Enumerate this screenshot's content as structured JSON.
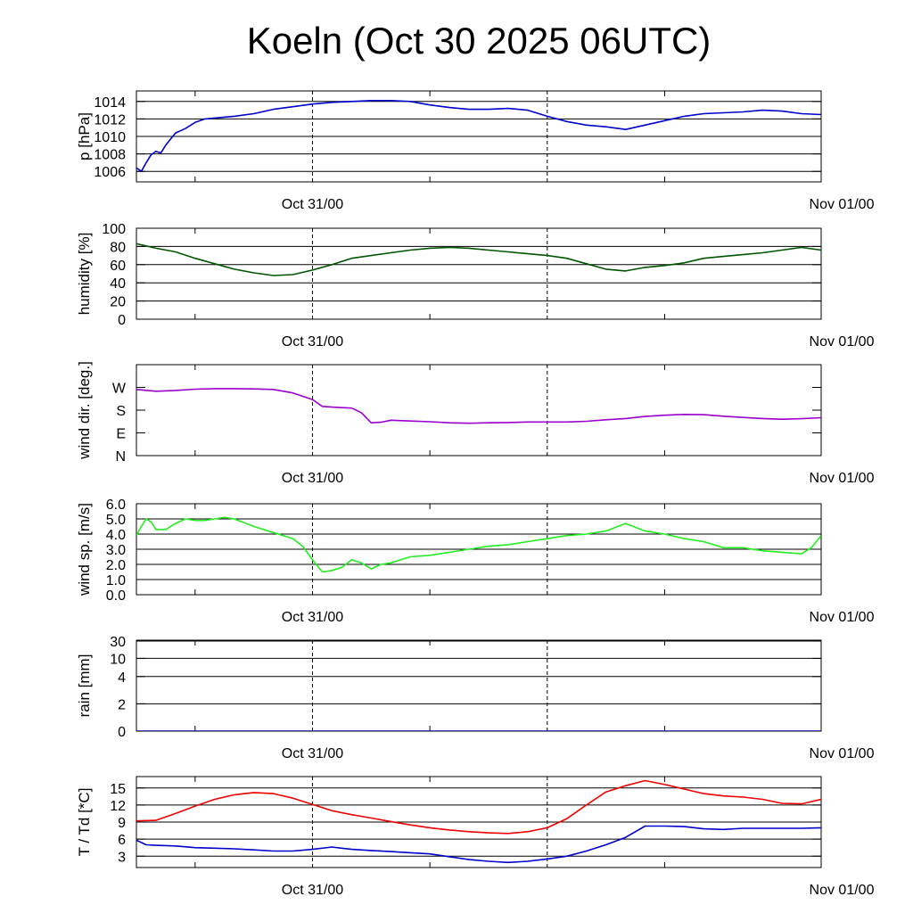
{
  "title": "Koeln (Oct 30 2025 06UTC)",
  "x_tick_labels": [
    "Oct 31/00",
    "Nov 01/00"
  ],
  "chart_data": [
    {
      "id": "pressure",
      "type": "line",
      "ylabel": "p [hPa]",
      "ylim": [
        1004.8,
        1015.2
      ],
      "yticks": [
        1006,
        1008,
        1010,
        1012,
        1014
      ],
      "ytick_labels": [
        "1006",
        "1008",
        "1010",
        "1012",
        "1014"
      ],
      "grid": true,
      "series": [
        {
          "color": "#0000cc",
          "x": [
            0,
            0.5,
            1,
            1.5,
            2,
            2.5,
            3,
            3.5,
            4,
            5,
            6,
            7,
            8,
            10,
            12,
            14,
            16,
            18,
            20,
            22,
            24,
            26,
            28,
            30,
            32,
            34,
            36,
            38,
            40,
            42,
            44,
            46,
            48,
            50,
            52,
            54,
            56,
            58,
            60,
            62,
            64,
            66,
            68,
            70
          ],
          "values": [
            1006.4,
            1006.0,
            1007.0,
            1007.9,
            1008.3,
            1008.1,
            1009.0,
            1009.7,
            1010.4,
            1010.9,
            1011.6,
            1012.0,
            1012.1,
            1012.3,
            1012.6,
            1013.1,
            1013.4,
            1013.7,
            1013.9,
            1014.0,
            1014.1,
            1014.1,
            1014.0,
            1013.6,
            1013.3,
            1013.1,
            1013.1,
            1013.2,
            1013.0,
            1012.3,
            1011.7,
            1011.3,
            1011.1,
            1010.8,
            1011.3,
            1011.8,
            1012.3,
            1012.6,
            1012.7,
            1012.8,
            1013.0,
            1012.9,
            1012.6,
            1012.5
          ]
        }
      ]
    },
    {
      "id": "humidity",
      "type": "line",
      "ylabel": "humidity [%]",
      "ylim": [
        0,
        100
      ],
      "yticks": [
        0,
        20,
        40,
        60,
        80,
        100
      ],
      "ytick_labels": [
        "0",
        "20",
        "40",
        "60",
        "80",
        "100"
      ],
      "grid": true,
      "series": [
        {
          "color": "#005500",
          "x": [
            0,
            2,
            4,
            6,
            8,
            10,
            12,
            14,
            16,
            18,
            20,
            22,
            24,
            26,
            28,
            30,
            32,
            34,
            36,
            38,
            40,
            42,
            44,
            46,
            48,
            50,
            52,
            54,
            56,
            58,
            60,
            62,
            64,
            66,
            68,
            70
          ],
          "values": [
            83,
            78,
            74,
            67,
            61,
            55,
            51,
            48,
            49,
            54,
            60,
            67,
            70,
            73,
            76,
            78,
            79,
            78,
            76,
            74,
            72,
            70,
            67,
            61,
            55,
            53,
            57,
            59,
            62,
            67,
            69,
            71,
            73,
            76,
            79,
            76
          ]
        }
      ]
    },
    {
      "id": "wind-direction",
      "type": "line",
      "ylabel": "wind dir. [deg.]",
      "ylim": [
        0,
        360
      ],
      "yticks": [
        0,
        90,
        180,
        270
      ],
      "ytick_labels": [
        "N",
        "E",
        "S",
        "W"
      ],
      "grid": false,
      "series": [
        {
          "color": "#9900cc",
          "x": [
            0,
            2,
            4,
            6,
            8,
            10,
            12,
            14,
            16,
            18,
            19,
            20,
            22,
            23,
            24,
            25,
            26,
            28,
            30,
            32,
            34,
            36,
            38,
            40,
            42,
            44,
            46,
            48,
            50,
            52,
            54,
            56,
            58,
            60,
            62,
            64,
            66,
            68,
            70
          ],
          "values": [
            262,
            255,
            258,
            263,
            265,
            265,
            264,
            262,
            248,
            222,
            195,
            192,
            188,
            170,
            130,
            132,
            140,
            137,
            134,
            130,
            128,
            130,
            131,
            133,
            133,
            133,
            136,
            142,
            147,
            155,
            160,
            163,
            162,
            156,
            151,
            147,
            144,
            146,
            150
          ]
        }
      ]
    },
    {
      "id": "wind-speed",
      "type": "line",
      "ylabel": "wind sp. [m/s]",
      "ylim": [
        0,
        6
      ],
      "yticks": [
        0,
        1,
        2,
        3,
        4,
        5,
        6
      ],
      "ytick_labels": [
        "0.0",
        "1.0",
        "2.0",
        "3.0",
        "4.0",
        "5.0",
        "6.0"
      ],
      "grid": true,
      "series": [
        {
          "color": "#22ee22",
          "x": [
            0,
            0.5,
            1,
            1.5,
            2,
            3,
            4,
            5,
            6,
            7,
            8,
            9,
            10,
            12,
            14,
            16,
            17,
            18,
            19,
            20,
            21,
            22,
            23,
            24,
            25,
            26,
            28,
            30,
            32,
            34,
            36,
            38,
            40,
            42,
            44,
            46,
            48,
            50,
            52,
            54,
            56,
            58,
            60,
            62,
            64,
            66,
            68,
            69,
            70
          ],
          "values": [
            3.9,
            4.5,
            5.0,
            4.8,
            4.3,
            4.3,
            4.7,
            5.0,
            4.9,
            4.9,
            5.0,
            5.1,
            5.0,
            4.5,
            4.1,
            3.7,
            3.2,
            2.3,
            1.5,
            1.6,
            1.8,
            2.3,
            2.1,
            1.7,
            2.0,
            2.1,
            2.5,
            2.6,
            2.8,
            3.0,
            3.2,
            3.3,
            3.5,
            3.7,
            3.9,
            4.0,
            4.2,
            4.7,
            4.2,
            4.0,
            3.7,
            3.5,
            3.1,
            3.1,
            2.9,
            2.8,
            2.7,
            3.1,
            3.9
          ]
        }
      ]
    },
    {
      "id": "rain",
      "type": "line",
      "ylabel": "rain [mm]",
      "scale": "rain",
      "ylim": [
        0,
        35
      ],
      "yticks": [
        0,
        2,
        4,
        10,
        30
      ],
      "ytick_labels": [
        "0",
        "2",
        "4",
        "10",
        "30"
      ],
      "grid": true,
      "series": [
        {
          "color": "#0000aa",
          "x": [
            0,
            70
          ],
          "values": [
            0,
            0
          ]
        }
      ]
    },
    {
      "id": "temperature",
      "type": "line",
      "ylabel": "T / Td [*C]",
      "ylim": [
        1,
        17
      ],
      "yticks": [
        3,
        6,
        9,
        12,
        15
      ],
      "ytick_labels": [
        "3",
        "6",
        "9",
        "12",
        "15"
      ],
      "grid": true,
      "series": [
        {
          "color": "#ee0000",
          "x": [
            0,
            2,
            4,
            6,
            8,
            10,
            12,
            14,
            16,
            18,
            20,
            22,
            24,
            26,
            28,
            30,
            32,
            34,
            36,
            38,
            40,
            42,
            44,
            46,
            48,
            50,
            52,
            54,
            56,
            58,
            60,
            62,
            64,
            66,
            68,
            70
          ],
          "values": [
            9.2,
            9.3,
            10.5,
            11.8,
            13.0,
            13.8,
            14.2,
            14.0,
            13.2,
            12.1,
            11.0,
            10.3,
            9.7,
            9.1,
            8.5,
            8.0,
            7.6,
            7.3,
            7.1,
            7.0,
            7.3,
            8.0,
            9.6,
            12.0,
            14.3,
            15.4,
            16.3,
            15.6,
            14.8,
            14.0,
            13.6,
            13.4,
            13.0,
            12.3,
            12.2,
            13.0
          ]
        },
        {
          "color": "#0000cc",
          "x": [
            0,
            1,
            2,
            4,
            6,
            8,
            10,
            12,
            14,
            16,
            18,
            20,
            22,
            24,
            26,
            28,
            30,
            32,
            34,
            36,
            38,
            40,
            42,
            44,
            46,
            48,
            50,
            52,
            54,
            56,
            58,
            60,
            62,
            64,
            66,
            68,
            70
          ],
          "values": [
            5.8,
            5.0,
            4.9,
            4.8,
            4.5,
            4.4,
            4.3,
            4.1,
            3.9,
            3.9,
            4.2,
            4.6,
            4.2,
            4.0,
            3.8,
            3.6,
            3.4,
            2.9,
            2.4,
            2.1,
            1.9,
            2.1,
            2.5,
            3.0,
            3.9,
            5.0,
            6.3,
            8.3,
            8.3,
            8.2,
            7.8,
            7.7,
            7.9,
            7.9,
            7.9,
            7.9,
            8.0
          ]
        }
      ]
    }
  ]
}
